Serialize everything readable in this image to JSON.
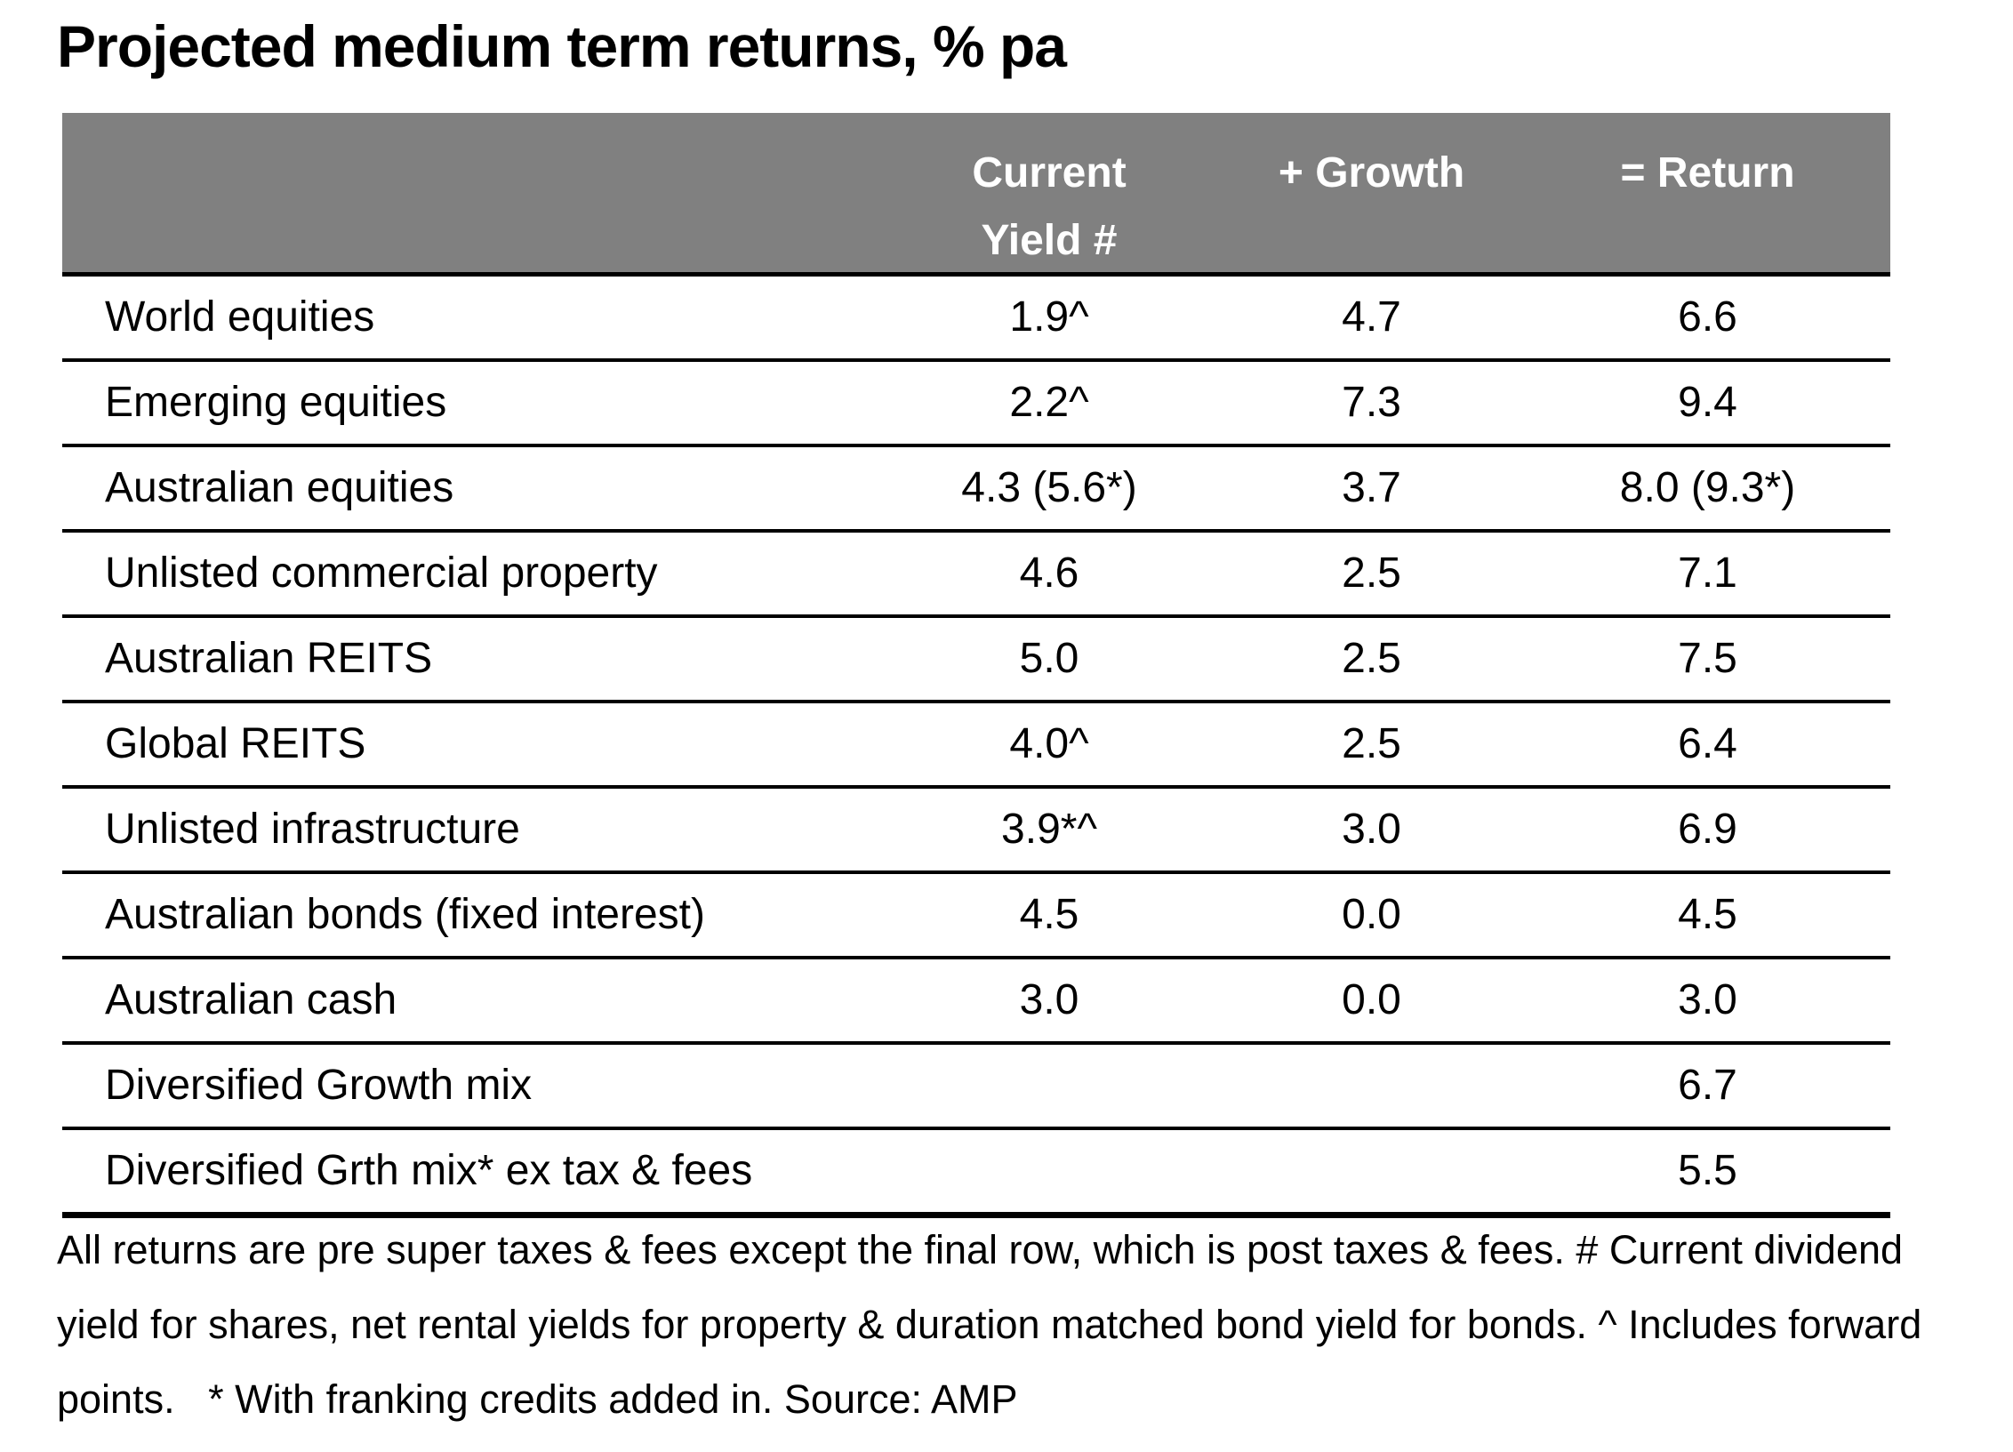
{
  "chart_data": {
    "type": "table",
    "title": "Projected medium term returns, % pa",
    "header": {
      "yield_line1": "Current",
      "yield_line2": "Yield #",
      "growth": "+ Growth",
      "return": "= Return"
    },
    "rows": [
      {
        "label": "World equities",
        "yield": "1.9^",
        "growth": "4.7",
        "return": "6.6"
      },
      {
        "label": "Emerging equities",
        "yield": "2.2^",
        "growth": "7.3",
        "return": "9.4"
      },
      {
        "label": "Australian equities",
        "yield": "4.3 (5.6*)",
        "growth": "3.7",
        "return": "8.0 (9.3*)"
      },
      {
        "label": "Unlisted commercial property",
        "yield": "4.6",
        "growth": "2.5",
        "return": "7.1"
      },
      {
        "label": "Australian REITS",
        "yield": "5.0",
        "growth": "2.5",
        "return": "7.5"
      },
      {
        "label": "Global REITS",
        "yield": "4.0^",
        "growth": "2.5",
        "return": "6.4"
      },
      {
        "label": "Unlisted infrastructure",
        "yield": "3.9*^",
        "growth": "3.0",
        "return": "6.9"
      },
      {
        "label": "Australian bonds (fixed interest)",
        "yield": "4.5",
        "growth": "0.0",
        "return": "4.5"
      },
      {
        "label": "Australian cash",
        "yield": "3.0",
        "growth": "0.0",
        "return": "3.0"
      },
      {
        "label": "Diversified Growth mix",
        "yield": "",
        "growth": "",
        "return": "6.7"
      },
      {
        "label": "Diversified Grth mix* ex tax & fees",
        "yield": "",
        "growth": "",
        "return": "5.5"
      }
    ],
    "footnote": "All returns are pre super taxes & fees except the final row, which is post taxes & fees. # Current dividend yield for shares, net rental yields for property & duration matched bond yield for bonds. ^ Includes forward points.   * With franking credits added in. Source: AMP",
    "colors": {
      "header_bg": "#808080",
      "header_text": "#ffffff",
      "text": "#000000",
      "line": "#000000"
    },
    "layout_hints": {
      "columns": [
        "",
        "Current Yield #",
        "+ Growth",
        "= Return"
      ],
      "grid": "horizontal-lines-only"
    }
  }
}
